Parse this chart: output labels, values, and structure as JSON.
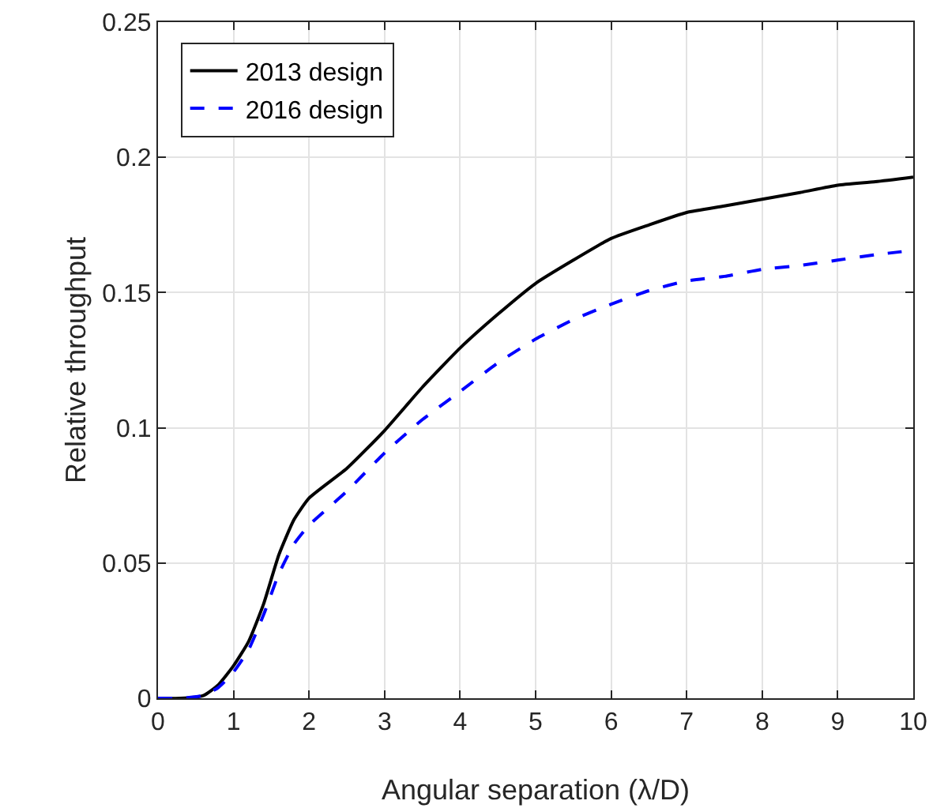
{
  "chart_data": {
    "type": "line",
    "xlabel": "Angular separation (λ/D)",
    "ylabel": "Relative throughput",
    "xlim": [
      0,
      10
    ],
    "ylim": [
      0,
      0.25
    ],
    "xticks": [
      0,
      1,
      2,
      3,
      4,
      5,
      6,
      7,
      8,
      9,
      10
    ],
    "yticks": [
      0,
      0.05,
      0.1,
      0.15,
      0.2,
      0.25
    ],
    "grid": true,
    "legend": "top left",
    "marker": "none",
    "x": [
      0,
      0.3,
      0.6,
      0.8,
      1,
      1.2,
      1.4,
      1.6,
      1.8,
      2,
      2.5,
      3,
      3.5,
      4,
      4.5,
      5,
      5.5,
      6,
      6.5,
      7,
      7.5,
      8,
      8.5,
      9,
      9.5,
      10
    ],
    "series": [
      {
        "name": "2013 design",
        "color": "#000000",
        "line_style": "solid",
        "values": [
          0,
          0,
          0.001,
          0.005,
          0.012,
          0.021,
          0.035,
          0.053,
          0.066,
          0.074,
          0.085,
          0.099,
          0.115,
          0.1295,
          0.142,
          0.1534,
          0.162,
          0.17,
          0.175,
          0.1796,
          0.182,
          0.1845,
          0.187,
          0.1897,
          0.191,
          0.1927
        ]
      },
      {
        "name": "2016 design",
        "color": "#0000ff",
        "line_style": "dashed",
        "values": [
          0,
          0,
          0.001,
          0.004,
          0.0097,
          0.018,
          0.031,
          0.046,
          0.057,
          0.064,
          0.0765,
          0.0907,
          0.103,
          0.1134,
          0.124,
          0.1328,
          0.14,
          0.1457,
          0.1507,
          0.1543,
          0.156,
          0.1586,
          0.16,
          0.162,
          0.164,
          0.1656
        ]
      }
    ]
  }
}
